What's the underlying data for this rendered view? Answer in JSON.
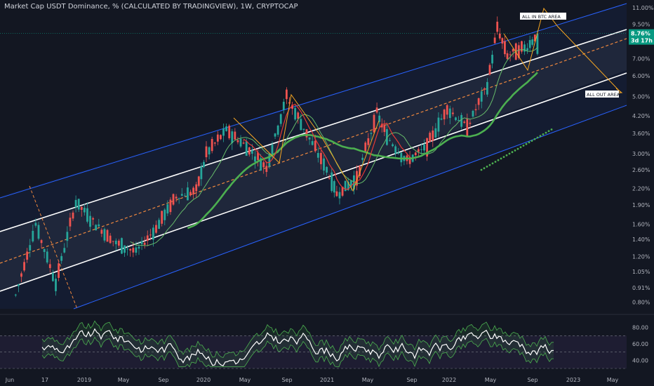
{
  "chart_data": {
    "type": "candlestick",
    "title": "Market Cap USDT Dominance, % (CALCULATED BY TRADINGVIEW), 1W, CRYPTOCAP",
    "y_scale": "log",
    "ylim": [
      0.73,
      11.8
    ],
    "y_ticks": [
      "11.00%",
      "9.50%",
      "7.00%",
      "6.00%",
      "5.00%",
      "4.20%",
      "3.60%",
      "3.00%",
      "2.60%",
      "2.20%",
      "1.90%",
      "1.60%",
      "1.40%",
      "1.20%",
      "1.05%",
      "0.91%",
      "0.80%"
    ],
    "x_ticks": [
      "Jun",
      "17",
      "2019",
      "May",
      "Sep",
      "2020",
      "May",
      "Sep",
      "2021",
      "May",
      "Sep",
      "2022",
      "May",
      "Sep",
      "2023",
      "May"
    ],
    "last_value": "8.76%",
    "countdown": "3d 17h",
    "annotations": [
      "ALL IN BTC AREA",
      "ALL OUT AREA"
    ],
    "weekly_close_points": [
      [
        "2018-06",
        0.85
      ],
      [
        "2018-08",
        1.6
      ],
      [
        "2018-10",
        0.95
      ],
      [
        "2018-12",
        1.95
      ],
      [
        "2019-02",
        1.6
      ],
      [
        "2019-04",
        1.35
      ],
      [
        "2019-06",
        1.25
      ],
      [
        "2019-08",
        1.55
      ],
      [
        "2019-10",
        2.05
      ],
      [
        "2019-12",
        2.15
      ],
      [
        "2020-01",
        3.0
      ],
      [
        "2020-03",
        3.7
      ],
      [
        "2020-05",
        3.2
      ],
      [
        "2020-07",
        2.65
      ],
      [
        "2020-09",
        5.0
      ],
      [
        "2020-11",
        3.6
      ],
      [
        "2021-01",
        2.6
      ],
      [
        "2021-02",
        2.1
      ],
      [
        "2021-04",
        2.4
      ],
      [
        "2021-06",
        4.3
      ],
      [
        "2021-07",
        3.5
      ],
      [
        "2021-09",
        2.8
      ],
      [
        "2021-11",
        3.2
      ],
      [
        "2022-01",
        4.5
      ],
      [
        "2022-03",
        3.8
      ],
      [
        "2022-05",
        5.5
      ],
      [
        "2022-06",
        9.2
      ],
      [
        "2022-07",
        7.2
      ],
      [
        "2022-09",
        7.8
      ],
      [
        "2022-10",
        8.76
      ]
    ],
    "rsi": {
      "ylim": [
        30,
        90
      ],
      "y_ticks": [
        "80.00",
        "60.00",
        "40.00"
      ],
      "upper_band": 70,
      "lower_band": 30
    },
    "colors": {
      "up": "#26a69a",
      "down": "#ef5350",
      "channel_line": "#ffffff",
      "outer_channel": "#2962ff",
      "midline": "#f0883e",
      "ma_green": "#4caf50",
      "ma_red": "#e53935",
      "rsi_line": "#ffffff",
      "last_badge": "#089981",
      "annotation": "#f5a623"
    }
  }
}
